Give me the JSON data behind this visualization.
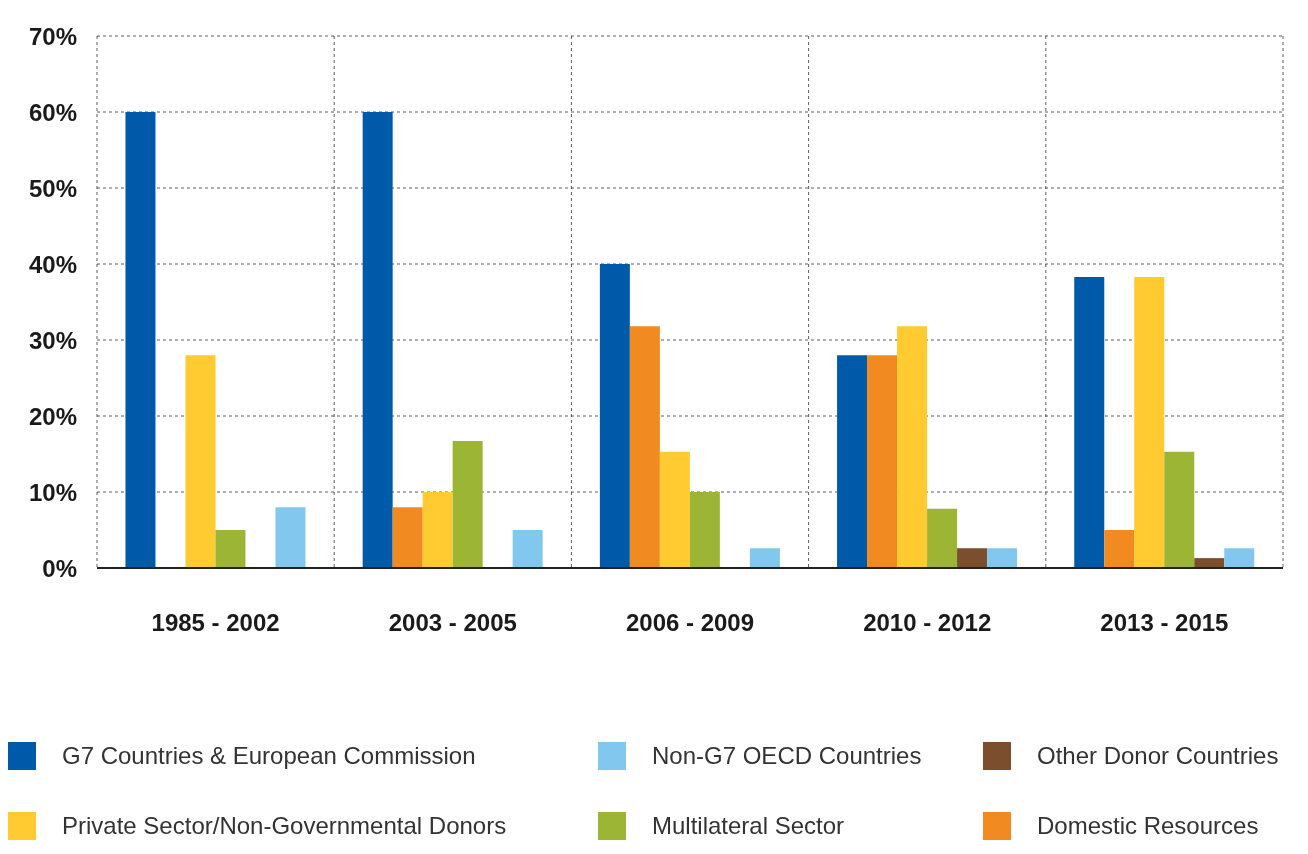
{
  "chart_data": {
    "type": "bar",
    "categories": [
      "1985 - 2002",
      "2003 - 2005",
      "2006 - 2009",
      "2010 - 2012",
      "2013 - 2015"
    ],
    "series": [
      {
        "name": "G7 Countries & European Commission",
        "color": "#005aaa",
        "values": [
          60,
          60,
          40,
          28,
          38.3
        ]
      },
      {
        "name": "Domestic Resources",
        "color": "#f18a21",
        "values": [
          null,
          8,
          31.8,
          28,
          5
        ]
      },
      {
        "name": "Private Sector/Non-Governmental Donors",
        "color": "#ffcb31",
        "values": [
          28,
          10,
          15.3,
          31.8,
          38.3
        ]
      },
      {
        "name": "Multilateral Sector",
        "color": "#9db535",
        "values": [
          5,
          16.7,
          10,
          7.8,
          15.3
        ]
      },
      {
        "name": "Other Donor Countries",
        "color": "#7b4f2e",
        "values": [
          null,
          null,
          null,
          2.6,
          1.3
        ]
      },
      {
        "name": "Non-G7 OECD Countries",
        "color": "#82c8ee",
        "values": [
          8,
          5,
          2.6,
          2.6,
          2.6
        ]
      }
    ],
    "ylim": [
      0,
      70
    ],
    "yticks": [
      {
        "value": 0,
        "label": "0%"
      },
      {
        "value": 10,
        "label": "10%"
      },
      {
        "value": 20,
        "label": "20%"
      },
      {
        "value": 30,
        "label": "30%"
      },
      {
        "value": 40,
        "label": "40%"
      },
      {
        "value": 50,
        "label": "50%"
      },
      {
        "value": 60,
        "label": "60%"
      },
      {
        "value": 70,
        "label": "70%"
      }
    ],
    "grid": true,
    "legend": "bottom"
  }
}
